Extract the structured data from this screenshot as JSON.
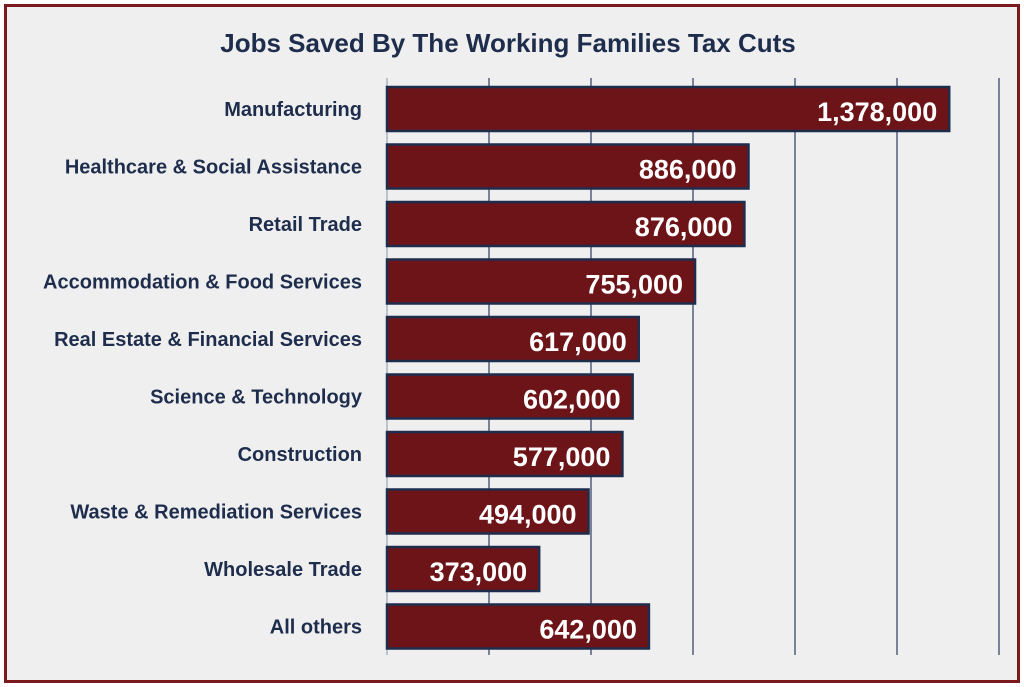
{
  "chart_data": {
    "type": "bar",
    "orientation": "horizontal",
    "title": "Jobs Saved By The Working Families Tax Cuts",
    "categories": [
      "Manufacturing",
      "Healthcare & Social Assistance",
      "Retail Trade",
      "Accommodation & Food Services",
      "Real Estate & Financial Services",
      "Science & Technology",
      "Construction",
      "Waste & Remediation Services",
      "Wholesale Trade",
      "All others"
    ],
    "values": [
      1378000,
      886000,
      876000,
      755000,
      617000,
      602000,
      577000,
      494000,
      373000,
      642000
    ],
    "value_labels": [
      "1,378,000",
      "886,000",
      "876,000",
      "755,000",
      "617,000",
      "602,000",
      "577,000",
      "494,000",
      "373,000",
      "642,000"
    ],
    "xlim": [
      0,
      1500000
    ],
    "grid": true,
    "legend": "none",
    "colors": {
      "bar": "#6d1418",
      "bar_edge": "#1f2d4d",
      "text": "#1f2d4d",
      "frame": "#7a1a1c",
      "background": "#efefef"
    }
  }
}
